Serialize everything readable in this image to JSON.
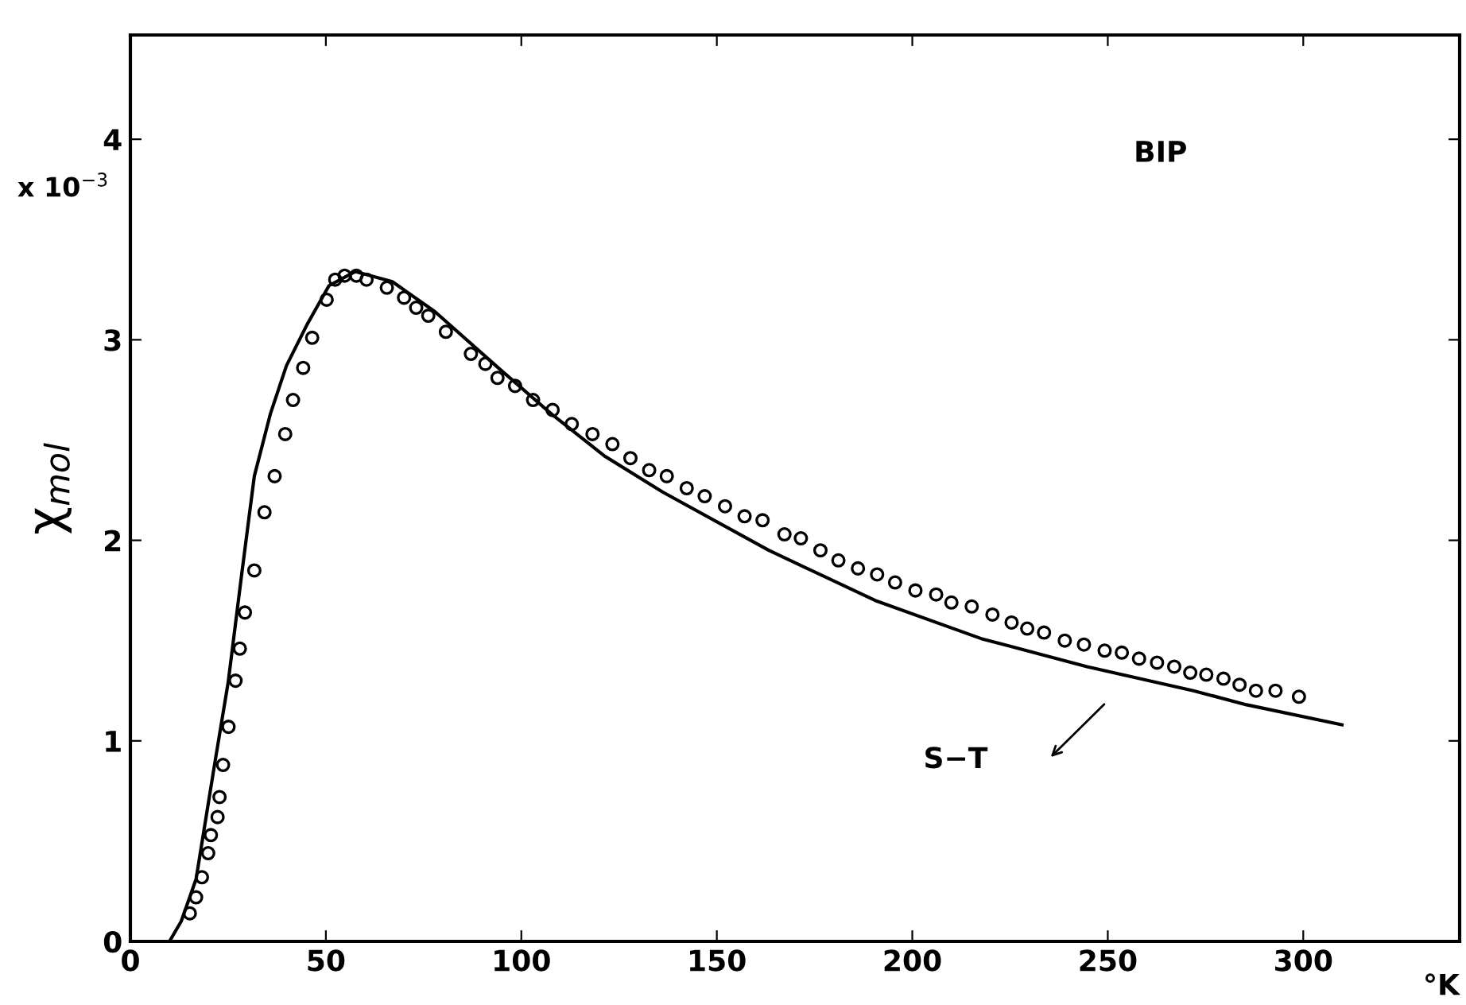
{
  "chart_data": {
    "type": "line",
    "title": "BIP",
    "xlabel": "°K",
    "ylabel": "χ$_{mol}$",
    "annotations": [
      "x 10$^{−3}$",
      "S−T"
    ],
    "xlim": [
      0,
      340
    ],
    "ylim": [
      0,
      4.52
    ],
    "xticks": [
      0,
      50,
      100,
      150,
      200,
      250,
      300
    ],
    "yticks": [
      0,
      1,
      2,
      3,
      4
    ],
    "grid": false,
    "legend": false,
    "series": [
      {
        "type": "scatter",
        "marker": "circle",
        "color": "#000000",
        "x": [
          15.2,
          16.8,
          18.3,
          19.9,
          20.6,
          22.3,
          22.8,
          23.7,
          25.1,
          26.9,
          28.0,
          29.3,
          31.7,
          34.3,
          36.9,
          39.6,
          41.6,
          44.2,
          46.5,
          50.2,
          52.4,
          54.8,
          57.8,
          60.4,
          65.6,
          70.0,
          73.1,
          76.2,
          80.7,
          87.1,
          90.8,
          93.9,
          98.4,
          103.0,
          108.0,
          112.9,
          118.2,
          123.3,
          127.9,
          132.7,
          137.2,
          142.3,
          146.9,
          152.1,
          157.1,
          161.7,
          167.3,
          171.5,
          176.5,
          181.1,
          186.1,
          191.0,
          195.6,
          200.8,
          206.1,
          210.0,
          215.2,
          220.5,
          225.4,
          229.4,
          233.7,
          239.0,
          243.9,
          249.2,
          253.6,
          258.0,
          262.6,
          267.0,
          271.1,
          275.2,
          279.6,
          283.7,
          287.9,
          292.9,
          298.9
        ],
        "values": [
          0.14,
          0.22,
          0.32,
          0.44,
          0.53,
          0.62,
          0.72,
          0.88,
          1.07,
          1.3,
          1.46,
          1.64,
          1.85,
          2.14,
          2.32,
          2.53,
          2.7,
          2.86,
          3.01,
          3.2,
          3.3,
          3.32,
          3.32,
          3.3,
          3.26,
          3.21,
          3.16,
          3.12,
          3.04,
          2.93,
          2.88,
          2.81,
          2.77,
          2.7,
          2.65,
          2.58,
          2.53,
          2.48,
          2.41,
          2.35,
          2.32,
          2.26,
          2.22,
          2.17,
          2.12,
          2.1,
          2.03,
          2.01,
          1.95,
          1.9,
          1.86,
          1.83,
          1.79,
          1.75,
          1.73,
          1.69,
          1.67,
          1.63,
          1.59,
          1.56,
          1.54,
          1.5,
          1.48,
          1.45,
          1.44,
          1.41,
          1.39,
          1.37,
          1.34,
          1.33,
          1.31,
          1.28,
          1.25,
          1.25,
          1.22
        ]
      },
      {
        "line_style": "solid",
        "color": "#000000",
        "x": [
          10,
          13,
          16.8,
          21.6,
          25.0,
          28.4,
          31.7,
          35.8,
          39.9,
          45.3,
          50.8,
          57.5,
          67.0,
          77.9,
          94.1,
          107.7,
          121.3,
          136.2,
          163.3,
          190.5,
          217.6,
          244.7,
          271.9,
          285.5,
          309.9
        ],
        "values": [
          0,
          0.1,
          0.31,
          0.89,
          1.29,
          1.82,
          2.32,
          2.63,
          2.87,
          3.08,
          3.27,
          3.34,
          3.29,
          3.14,
          2.86,
          2.63,
          2.42,
          2.24,
          1.95,
          1.7,
          1.51,
          1.37,
          1.25,
          1.18,
          1.08
        ]
      }
    ]
  }
}
